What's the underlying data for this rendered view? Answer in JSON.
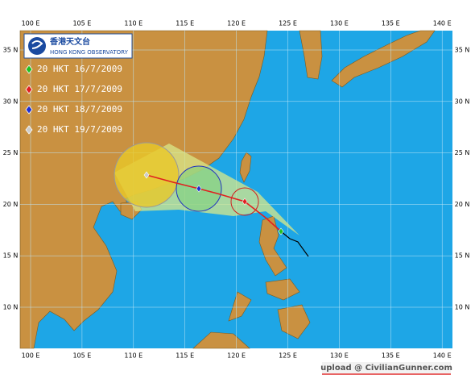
{
  "map": {
    "logo": {
      "chinese": "香港天文台",
      "english": "HONG KONG OBSERVATORY"
    },
    "legend": [
      "20 HKT 16/7/2009",
      "20 HKT 17/7/2009",
      "20 HKT 18/7/2009",
      "20 HKT 19/7/2009"
    ],
    "longitude_labels": [
      "100 E",
      "105 E",
      "110 E",
      "115 E",
      "120 E",
      "125 E",
      "130 E",
      "135 E",
      "140 E"
    ],
    "latitude_labels": [
      "35 N",
      "30 N",
      "25 N",
      "20 N",
      "15 N",
      "10 N"
    ],
    "watermark": "upload @ CivilianGunner.com"
  }
}
